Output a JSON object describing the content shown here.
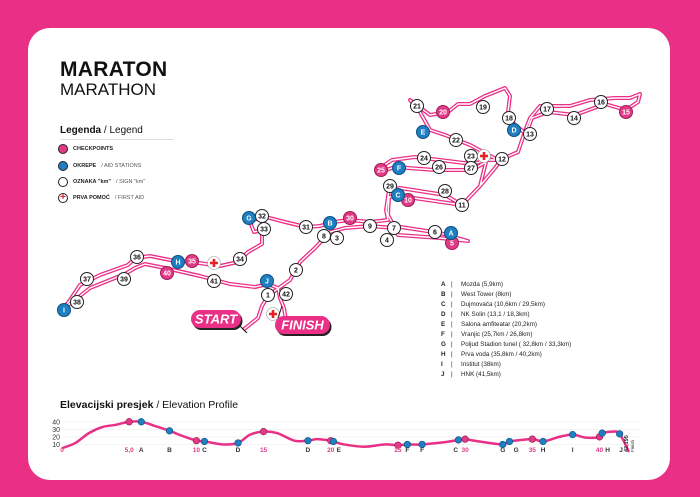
{
  "header": {
    "title": "MARATON",
    "subtitle": "MARATHON"
  },
  "legend": {
    "title_hr": "Legenda",
    "title_en": "/ Legend",
    "items": [
      {
        "label": "CHECKPOINTS",
        "label_en": "",
        "icon": "pink-circle"
      },
      {
        "label": "OKREPE",
        "label_en": "/ AID STATIONS",
        "icon": "blue-circle"
      },
      {
        "label": "OZNAKA \"km\"",
        "label_en": "/ SIGN \"km\"",
        "icon": "white-circle"
      },
      {
        "label": "PRVA POMOĆ",
        "label_en": "/ FIRST AID",
        "icon": "first-aid-cross"
      }
    ]
  },
  "colors": {
    "background": "#ea2f87",
    "checkpoint": "#e23a86",
    "aid_station": "#1e7fc2",
    "route": "#ea2f87",
    "first_aid": "#e52228"
  },
  "stations": [
    {
      "key": "A",
      "label": "Mozda (5,9km)"
    },
    {
      "key": "B",
      "label": "West Tower (8km)"
    },
    {
      "key": "C",
      "label": "Dujmovača (10,6km / 29,5km)"
    },
    {
      "key": "D",
      "label": "NK Solin (13,1 / 18,3km)"
    },
    {
      "key": "E",
      "label": "Salona amfiteatar (20,2km)"
    },
    {
      "key": "F",
      "label": "Vranjic (25,7km / 26,8km)"
    },
    {
      "key": "G",
      "label": "Poljud Stadion tunel ( 32,8km / 33,3km)"
    },
    {
      "key": "H",
      "label": "Prva voda (35,8km / 40,2km)"
    },
    {
      "key": "I",
      "label": "Institut (38km)"
    },
    {
      "key": "J",
      "label": "HNK (41,5km)"
    }
  ],
  "map": {
    "start_label": "START",
    "finish_label": "FINISH",
    "km_markers": [
      "1",
      "2",
      "3",
      "4",
      "6",
      "7",
      "8",
      "9",
      "11",
      "12",
      "13",
      "14",
      "16",
      "17",
      "18",
      "19",
      "21",
      "22",
      "23",
      "24",
      "26",
      "27",
      "28",
      "29",
      "31",
      "32",
      "33",
      "34",
      "36",
      "37",
      "38",
      "39",
      "41",
      "42"
    ],
    "checkpoints": [
      "5",
      "10",
      "15",
      "20",
      "25",
      "30",
      "35",
      "40"
    ],
    "aid_stations": [
      "A",
      "B",
      "C",
      "D",
      "E",
      "F",
      "G",
      "H",
      "I",
      "J"
    ],
    "first_aid_count": 3
  },
  "elevation_profile": {
    "title_hr": "Elevacijski presjek",
    "title_en": "/ Elevation Profile",
    "y_ticks": [
      "40",
      "30",
      "20",
      "10"
    ],
    "ylim": [
      0,
      45
    ],
    "xlim": [
      0,
      42.195
    ],
    "points_km_m": [
      [
        0,
        5
      ],
      [
        1,
        12
      ],
      [
        2,
        25
      ],
      [
        3,
        33
      ],
      [
        4,
        36
      ],
      [
        5,
        40
      ],
      [
        5.9,
        40
      ],
      [
        7,
        34
      ],
      [
        8,
        28
      ],
      [
        9,
        21
      ],
      [
        10,
        15
      ],
      [
        10.6,
        14
      ],
      [
        12,
        10
      ],
      [
        13.1,
        12
      ],
      [
        14,
        23
      ],
      [
        15,
        27
      ],
      [
        16,
        25
      ],
      [
        17.3,
        15
      ],
      [
        18.3,
        15
      ],
      [
        19,
        17
      ],
      [
        20,
        15
      ],
      [
        20.2,
        14
      ],
      [
        21,
        10
      ],
      [
        22.5,
        7
      ],
      [
        24,
        10
      ],
      [
        25,
        9
      ],
      [
        25.7,
        10
      ],
      [
        26.8,
        10
      ],
      [
        28.5,
        13
      ],
      [
        29.5,
        16
      ],
      [
        30,
        17
      ],
      [
        31,
        14
      ],
      [
        32.8,
        10
      ],
      [
        33.3,
        14
      ],
      [
        35,
        17
      ],
      [
        35.8,
        14
      ],
      [
        37,
        20
      ],
      [
        38,
        23
      ],
      [
        39,
        19
      ],
      [
        40,
        20
      ],
      [
        40.2,
        25
      ],
      [
        41,
        27
      ],
      [
        41.5,
        24
      ],
      [
        42.195,
        0
      ]
    ],
    "checkpoints_km": [
      5,
      10,
      15,
      20,
      25,
      30,
      35,
      40
    ],
    "aid_km": [
      5.9,
      8,
      10.6,
      13.1,
      18.3,
      20.2,
      25.7,
      26.8,
      29.5,
      32.8,
      33.3,
      35.8,
      38,
      40.2,
      41.5
    ],
    "x_labels": [
      {
        "text": "0",
        "km": 0,
        "kind": "km"
      },
      {
        "text": "5,0",
        "km": 5,
        "kind": "km"
      },
      {
        "text": "A",
        "km": 5.9,
        "kind": "station"
      },
      {
        "text": "B",
        "km": 8,
        "kind": "station"
      },
      {
        "text": "10",
        "km": 10,
        "kind": "km"
      },
      {
        "text": "C",
        "km": 10.6,
        "kind": "station"
      },
      {
        "text": "D",
        "km": 13.1,
        "kind": "station"
      },
      {
        "text": "15",
        "km": 15,
        "kind": "km"
      },
      {
        "text": "D",
        "km": 18.3,
        "kind": "station"
      },
      {
        "text": "20",
        "km": 20,
        "kind": "km"
      },
      {
        "text": "E",
        "km": 20.6,
        "kind": "station"
      },
      {
        "text": "25",
        "km": 25,
        "kind": "km"
      },
      {
        "text": "F",
        "km": 25.7,
        "kind": "station"
      },
      {
        "text": "F",
        "km": 26.8,
        "kind": "station"
      },
      {
        "text": "C",
        "km": 29.3,
        "kind": "station"
      },
      {
        "text": "30",
        "km": 30,
        "kind": "km"
      },
      {
        "text": "G",
        "km": 32.8,
        "kind": "station"
      },
      {
        "text": "G",
        "km": 33.8,
        "kind": "station"
      },
      {
        "text": "35",
        "km": 35,
        "kind": "km"
      },
      {
        "text": "H",
        "km": 35.8,
        "kind": "station"
      },
      {
        "text": "I",
        "km": 38,
        "kind": "station"
      },
      {
        "text": "40",
        "km": 40,
        "kind": "km"
      },
      {
        "text": "H",
        "km": 40.6,
        "kind": "station"
      },
      {
        "text": "J",
        "km": 41.6,
        "kind": "station"
      },
      {
        "text": "42,195",
        "km": 42.195,
        "kind": "finish"
      },
      {
        "text": "Finish",
        "km": 42.6,
        "kind": "finish-word"
      }
    ]
  }
}
